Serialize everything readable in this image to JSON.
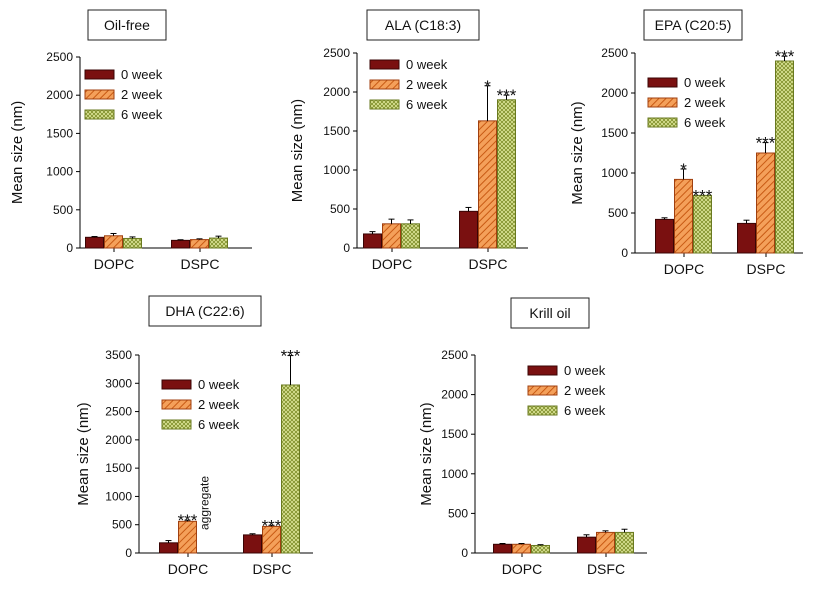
{
  "series_names": [
    "0 week",
    "2 week",
    "6 week"
  ],
  "colors": {
    "week0": "#7a1010",
    "week2": "#f08a3c",
    "week6": "#c8d870"
  },
  "chart_data": [
    {
      "type": "bar",
      "title": "Oil-free",
      "ylabel": "Mean size (nm)",
      "ylim": [
        0,
        2500
      ],
      "yticks": [
        0,
        500,
        1000,
        1500,
        2000,
        2500
      ],
      "categories": [
        "DOPC",
        "DSPC"
      ],
      "series": [
        {
          "name": "0 week",
          "values": [
            140,
            100
          ],
          "errors": [
            10,
            8
          ]
        },
        {
          "name": "2 week",
          "values": [
            160,
            110
          ],
          "errors": [
            30,
            10
          ]
        },
        {
          "name": "6 week",
          "values": [
            125,
            130
          ],
          "errors": [
            20,
            25
          ]
        }
      ],
      "significance": [
        [
          "",
          ""
        ],
        [
          "",
          ""
        ],
        [
          "",
          ""
        ]
      ],
      "annotations": []
    },
    {
      "type": "bar",
      "title": "ALA (C18:3)",
      "ylabel": "Mean size (nm)",
      "ylim": [
        0,
        2500
      ],
      "yticks": [
        0,
        500,
        1000,
        1500,
        2000,
        2500
      ],
      "categories": [
        "DOPC",
        "DSPC"
      ],
      "series": [
        {
          "name": "0 week",
          "values": [
            180,
            470
          ],
          "errors": [
            30,
            50
          ]
        },
        {
          "name": "2 week",
          "values": [
            310,
            1630
          ],
          "errors": [
            60,
            450
          ]
        },
        {
          "name": "6 week",
          "values": [
            310,
            1900
          ],
          "errors": [
            50,
            60
          ]
        }
      ],
      "significance": [
        [
          "",
          ""
        ],
        [
          "",
          "*"
        ],
        [
          "",
          "***"
        ]
      ],
      "annotations": []
    },
    {
      "type": "bar",
      "title": "EPA (C20:5)",
      "ylabel": "Mean size (nm)",
      "ylim": [
        0,
        2500
      ],
      "yticks": [
        0,
        500,
        1000,
        1500,
        2000,
        2500
      ],
      "categories": [
        "DOPC",
        "DSPC"
      ],
      "series": [
        {
          "name": "0 week",
          "values": [
            420,
            370
          ],
          "errors": [
            20,
            40
          ]
        },
        {
          "name": "2 week",
          "values": [
            920,
            1250
          ],
          "errors": [
            130,
            130
          ]
        },
        {
          "name": "6 week",
          "values": [
            720,
            2400
          ],
          "errors": [
            0,
            60
          ]
        }
      ],
      "significance": [
        [
          "",
          ""
        ],
        [
          "*",
          "***"
        ],
        [
          "***",
          "***"
        ]
      ],
      "annotations": []
    },
    {
      "type": "bar",
      "title": "DHA (C22:6)",
      "ylabel": "Mean size (nm)",
      "ylim": [
        0,
        3500
      ],
      "yticks": [
        0,
        500,
        1000,
        1500,
        2000,
        2500,
        3000,
        3500
      ],
      "categories": [
        "DOPC",
        "DSPC"
      ],
      "series": [
        {
          "name": "0 week",
          "values": [
            180,
            320
          ],
          "errors": [
            40,
            20
          ]
        },
        {
          "name": "2 week",
          "values": [
            560,
            470
          ],
          "errors": [
            20,
            20
          ]
        },
        {
          "name": "6 week",
          "values": [
            0,
            2970
          ],
          "errors": [
            0,
            520
          ]
        }
      ],
      "significance": [
        [
          "",
          ""
        ],
        [
          "***",
          "***"
        ],
        [
          "",
          "***"
        ]
      ],
      "annotations": [
        "aggregate"
      ]
    },
    {
      "type": "bar",
      "title": "Krill oil",
      "ylabel": "Mean size (nm)",
      "ylim": [
        0,
        2500
      ],
      "yticks": [
        0,
        500,
        1000,
        1500,
        2000,
        2500
      ],
      "categories": [
        "DOPC",
        "DSFC"
      ],
      "series": [
        {
          "name": "0 week",
          "values": [
            110,
            200
          ],
          "errors": [
            10,
            30
          ]
        },
        {
          "name": "2 week",
          "values": [
            110,
            260
          ],
          "errors": [
            10,
            20
          ]
        },
        {
          "name": "6 week",
          "values": [
            95,
            260
          ],
          "errors": [
            10,
            40
          ]
        }
      ],
      "significance": [
        [
          "",
          ""
        ],
        [
          "",
          ""
        ],
        [
          "",
          ""
        ]
      ],
      "annotations": []
    }
  ]
}
